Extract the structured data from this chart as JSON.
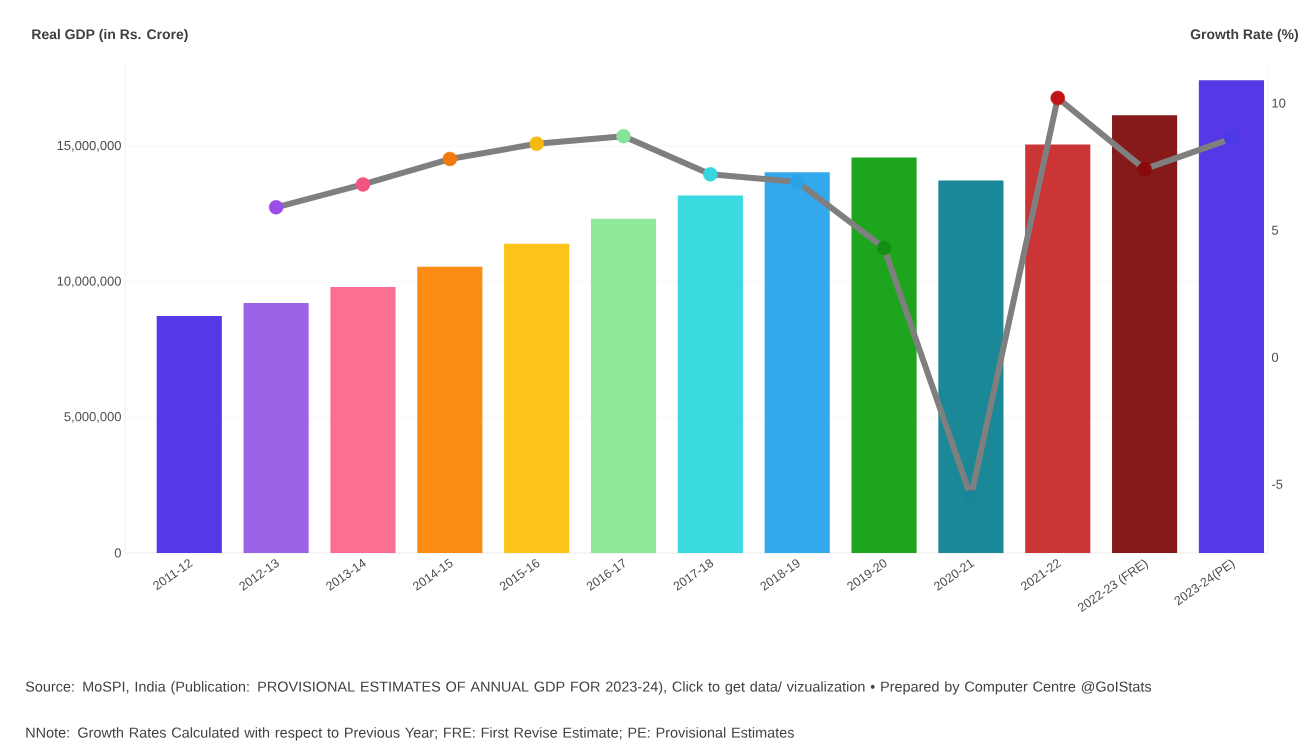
{
  "chart_data": {
    "type": "bar",
    "ylabel": "Real GDP (in Rs. Crore)",
    "y2label": "Growth Rate (%)",
    "categories": [
      "2011-12",
      "2012-13",
      "2013-14",
      "2014-15",
      "2015-16",
      "2016-17",
      "2017-18",
      "2018-19",
      "2019-20",
      "2020-21",
      "2021-22",
      "2022-23 (FRE)",
      "2023-24(PE)"
    ],
    "series": [
      {
        "colors": [
          "#5538e6",
          "#9b63e8",
          "#fb6f92",
          "#fd8c14",
          "#fcc419",
          "#8ee89a",
          "#3bd9e0",
          "#34a8ec",
          "#1da61d",
          "#1a8897",
          "#cc3535",
          "#861919",
          "#5538e6"
        ],
        "values": [
          8740000,
          9220000,
          9810000,
          10560000,
          11410000,
          12330000,
          13190000,
          14040000,
          14590000,
          13740000,
          15070000,
          16150000,
          17440000
        ]
      },
      {
        "type": "line",
        "axis": "y2",
        "color": "#7f7f7f",
        "colors": [
          null,
          "#9b4de8",
          "#f2547f",
          "#f07a0c",
          "#f5b90f",
          "#88e39a",
          "#36d5e0",
          "#2aa2e8",
          "#148f14",
          "#17869a",
          "#c01515",
          "#8a0a0a",
          "#4a3ae8"
        ],
        "values": [
          null,
          5.9,
          6.8,
          7.8,
          8.4,
          8.7,
          7.2,
          6.9,
          4.3,
          -5.5,
          10.2,
          7.4,
          8.6
        ]
      }
    ],
    "ylim": [
      0,
      18000000
    ],
    "yticks": [
      {
        "value": 0,
        "label": "0"
      },
      {
        "value": 5000000,
        "label": "5,000,000"
      },
      {
        "value": 10000000,
        "label": "10,000,000"
      },
      {
        "value": 15000000,
        "label": "15,000,000"
      }
    ],
    "y2lim": [
      -7.7,
      11.5
    ],
    "y2ticks": [
      -5,
      0,
      5,
      10
    ],
    "grid": "y",
    "marker": "circle",
    "annotations": [
      "Source: MoSPI, India (Publication: PROVISIONAL ESTIMATES OF ANNUAL GDP FOR 2023-24), Click to get data/ vizualization • Prepared by Computer Centre @GoIStats",
      "NNote: Growth Rates Calculated with respect to Previous Year; FRE: First Revise Estimate; PE: Provisional Estimates"
    ]
  }
}
